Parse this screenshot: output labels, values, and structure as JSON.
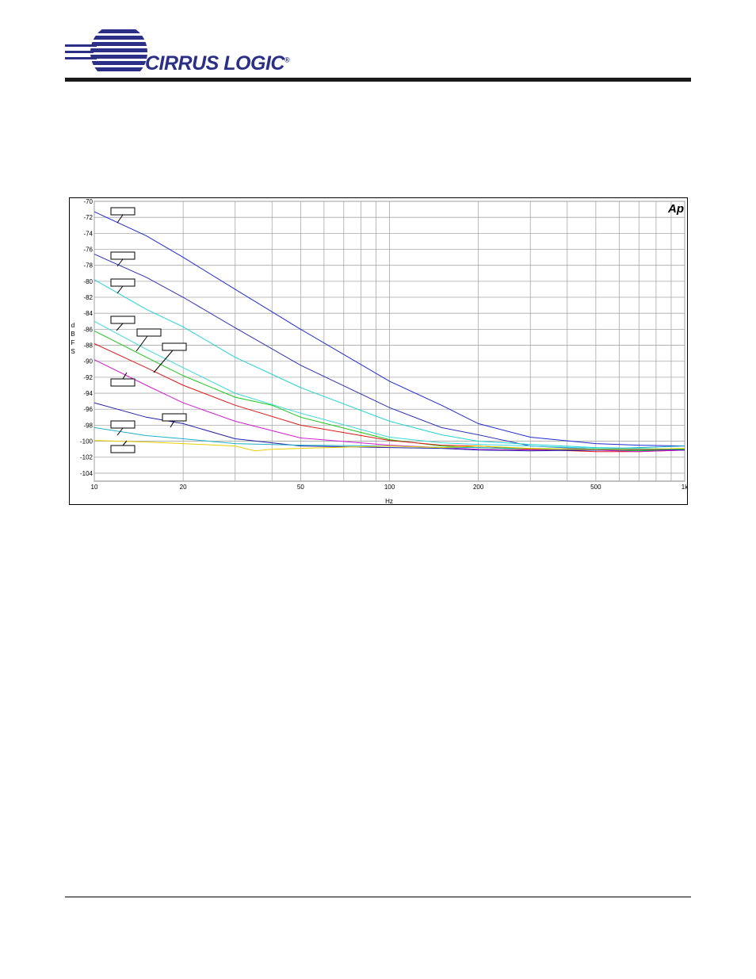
{
  "header": {
    "brand": "CIRRUS LOGIC",
    "registered_mark": "®",
    "brand_color": "#2b2f86"
  },
  "chart_data": {
    "type": "line",
    "title": "",
    "badge": "Ap",
    "xlabel": "Hz",
    "ylabel": "dBFS",
    "ylabel_letters": [
      "d",
      "B",
      "F",
      "S"
    ],
    "x_scale": "log",
    "xlim": [
      10,
      1000
    ],
    "ylim": [
      -105,
      -70
    ],
    "x_ticks": [
      {
        "value": 10,
        "label": "10"
      },
      {
        "value": 20,
        "label": "20"
      },
      {
        "value": 50,
        "label": "50"
      },
      {
        "value": 100,
        "label": "100"
      },
      {
        "value": 200,
        "label": "200"
      },
      {
        "value": 500,
        "label": "500"
      },
      {
        "value": 1000,
        "label": "1k"
      }
    ],
    "y_ticks": [
      -70,
      -72,
      -74,
      -76,
      -78,
      -80,
      -82,
      -84,
      -86,
      -88,
      -90,
      -92,
      -94,
      -96,
      -98,
      -100,
      -102,
      -104
    ],
    "grid": true,
    "legend": "none (blank callout boxes)",
    "series": [
      {
        "color": "#1f2bd6",
        "points": [
          [
            10,
            -71.3
          ],
          [
            15,
            -74.3
          ],
          [
            20,
            -77
          ],
          [
            30,
            -81
          ],
          [
            50,
            -86
          ],
          [
            100,
            -92.5
          ],
          [
            150,
            -95.5
          ],
          [
            200,
            -97.8
          ],
          [
            300,
            -99.5
          ],
          [
            500,
            -100.3
          ],
          [
            700,
            -100.5
          ],
          [
            1000,
            -100.6
          ]
        ]
      },
      {
        "color": "#2d35b8",
        "points": [
          [
            10,
            -76.6
          ],
          [
            15,
            -79.5
          ],
          [
            20,
            -82
          ],
          [
            30,
            -85.8
          ],
          [
            50,
            -90.5
          ],
          [
            100,
            -95.8
          ],
          [
            150,
            -98.3
          ],
          [
            200,
            -99.2
          ],
          [
            300,
            -100.6
          ],
          [
            500,
            -101
          ],
          [
            700,
            -101.1
          ],
          [
            1000,
            -101
          ]
        ]
      },
      {
        "color": "#22d3d3",
        "points": [
          [
            10,
            -79.8
          ],
          [
            15,
            -83.5
          ],
          [
            20,
            -85.7
          ],
          [
            30,
            -89.5
          ],
          [
            50,
            -93.3
          ],
          [
            100,
            -97.5
          ],
          [
            150,
            -99.2
          ],
          [
            200,
            -100
          ],
          [
            300,
            -100.4
          ],
          [
            500,
            -100.8
          ],
          [
            700,
            -100.9
          ],
          [
            1000,
            -101
          ]
        ]
      },
      {
        "color": "#3cd9d9",
        "points": [
          [
            10,
            -85
          ],
          [
            15,
            -88.5
          ],
          [
            20,
            -90.8
          ],
          [
            30,
            -94
          ],
          [
            50,
            -96.5
          ],
          [
            100,
            -99.5
          ],
          [
            150,
            -100.2
          ],
          [
            200,
            -100.4
          ],
          [
            300,
            -100.6
          ],
          [
            500,
            -100.9
          ],
          [
            700,
            -101
          ],
          [
            1000,
            -101
          ]
        ]
      },
      {
        "color": "#18c818",
        "points": [
          [
            10,
            -86.2
          ],
          [
            15,
            -89.5
          ],
          [
            20,
            -91.8
          ],
          [
            30,
            -94.5
          ],
          [
            40,
            -95.5
          ],
          [
            50,
            -97
          ],
          [
            100,
            -99.8
          ],
          [
            150,
            -100.6
          ],
          [
            200,
            -100.8
          ],
          [
            300,
            -101
          ],
          [
            500,
            -101.1
          ],
          [
            700,
            -101.2
          ],
          [
            1000,
            -101
          ]
        ]
      },
      {
        "color": "#e01818",
        "points": [
          [
            10,
            -87.8
          ],
          [
            15,
            -90.8
          ],
          [
            20,
            -93
          ],
          [
            30,
            -95.5
          ],
          [
            50,
            -98
          ],
          [
            100,
            -99.9
          ],
          [
            150,
            -100.5
          ],
          [
            200,
            -100.6
          ],
          [
            300,
            -101
          ],
          [
            500,
            -101.3
          ],
          [
            700,
            -101.3
          ],
          [
            1000,
            -101.1
          ]
        ]
      },
      {
        "color": "#d01fd0",
        "points": [
          [
            10,
            -89.8
          ],
          [
            15,
            -93
          ],
          [
            20,
            -95.2
          ],
          [
            30,
            -97.5
          ],
          [
            50,
            -99.6
          ],
          [
            100,
            -100.5
          ],
          [
            150,
            -100.8
          ],
          [
            200,
            -101
          ],
          [
            300,
            -101.1
          ],
          [
            500,
            -101.1
          ],
          [
            700,
            -101.3
          ],
          [
            1000,
            -101.1
          ]
        ]
      },
      {
        "color": "#2020a8",
        "points": [
          [
            10,
            -95.2
          ],
          [
            15,
            -97
          ],
          [
            20,
            -97.8
          ],
          [
            30,
            -99.7
          ],
          [
            50,
            -100.6
          ],
          [
            100,
            -100.8
          ],
          [
            150,
            -100.9
          ],
          [
            200,
            -101.1
          ],
          [
            300,
            -101.2
          ],
          [
            500,
            -101.1
          ],
          [
            700,
            -101
          ],
          [
            1000,
            -101.1
          ]
        ]
      },
      {
        "color": "#1fb0c8",
        "points": [
          [
            10,
            -98.3
          ],
          [
            15,
            -99.3
          ],
          [
            20,
            -99.7
          ],
          [
            30,
            -100.3
          ],
          [
            50,
            -100.5
          ],
          [
            100,
            -100.6
          ],
          [
            150,
            -100.8
          ],
          [
            200,
            -100.8
          ],
          [
            300,
            -100.9
          ],
          [
            500,
            -101
          ],
          [
            700,
            -100.8
          ],
          [
            1000,
            -100.6
          ]
        ]
      },
      {
        "color": "#e8d000",
        "points": [
          [
            10,
            -99.9
          ],
          [
            15,
            -100.1
          ],
          [
            20,
            -100.3
          ],
          [
            30,
            -100.6
          ],
          [
            35,
            -101.2
          ],
          [
            40,
            -101
          ],
          [
            50,
            -100.9
          ],
          [
            100,
            -100.6
          ],
          [
            150,
            -100.8
          ],
          [
            200,
            -100.6
          ],
          [
            300,
            -100.9
          ],
          [
            500,
            -101
          ],
          [
            700,
            -101
          ],
          [
            1000,
            -100.9
          ]
        ]
      }
    ],
    "callouts": [
      {
        "box": [
          140,
          262
        ],
        "line": [
          [
            155,
            271
          ],
          [
            148,
            281
          ]
        ]
      },
      {
        "box": [
          140,
          318
        ],
        "line": [
          [
            155,
            327
          ],
          [
            148,
            336
          ]
        ]
      },
      {
        "box": [
          140,
          352
        ],
        "line": [
          [
            155,
            361
          ],
          [
            148,
            370
          ]
        ]
      },
      {
        "box": [
          140,
          399
        ],
        "line": [
          [
            155,
            408
          ],
          [
            147,
            417
          ]
        ]
      },
      {
        "box": [
          173,
          415
        ],
        "line": [
          [
            186,
            424
          ],
          [
            172,
            443
          ]
        ]
      },
      {
        "box": [
          205,
          433
        ],
        "line": [
          [
            218,
            442
          ],
          [
            194,
            470
          ]
        ]
      },
      {
        "box": [
          140,
          478
        ],
        "line": [
          [
            155,
            478
          ],
          [
            160,
            470
          ]
        ]
      },
      {
        "box": [
          205,
          522
        ],
        "line": [
          [
            220,
            531
          ],
          [
            215,
            539
          ]
        ]
      },
      {
        "box": [
          140,
          531
        ],
        "line": [
          [
            155,
            540
          ],
          [
            148,
            549
          ]
        ]
      },
      {
        "box": [
          140,
          562
        ],
        "line": [
          [
            155,
            562
          ],
          [
            160,
            556
          ]
        ]
      }
    ]
  }
}
